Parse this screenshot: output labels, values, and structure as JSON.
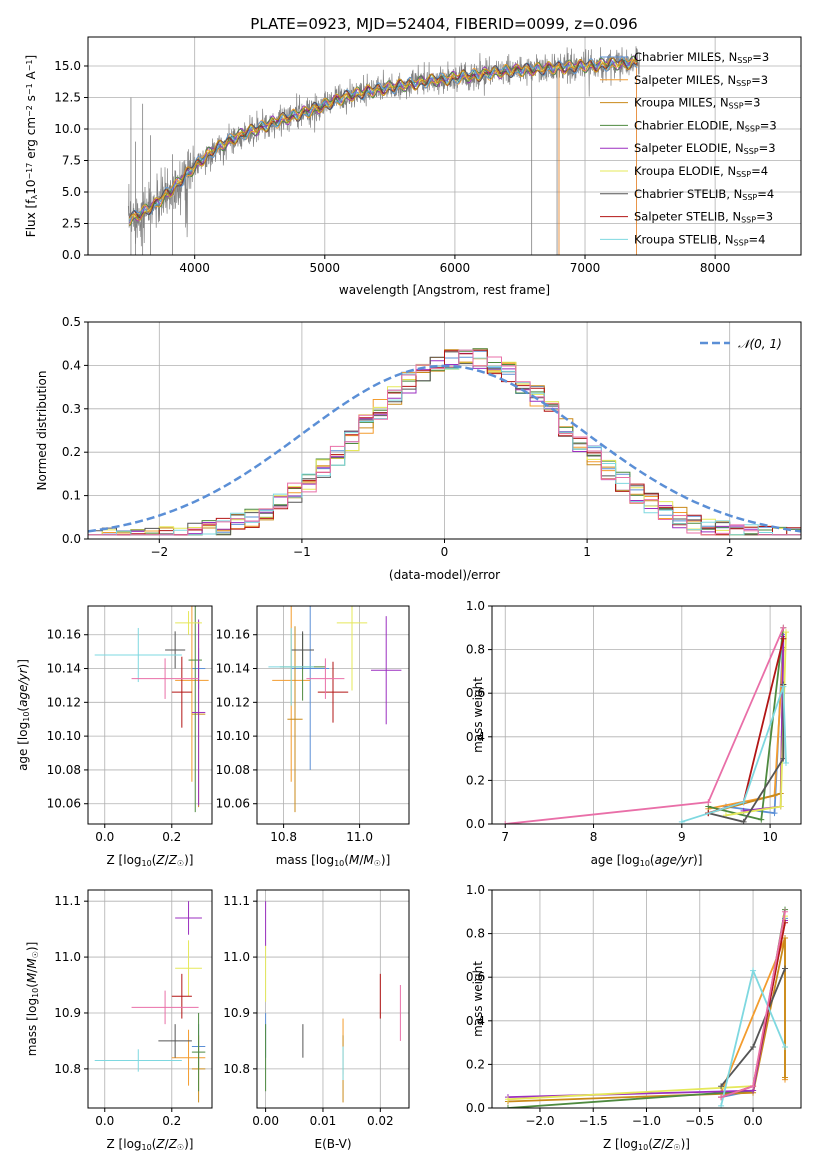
{
  "figure_title": "PLATE=0923, MJD=52404, FIBERID=0099, z=0.096",
  "colors": [
    "#5b8fd6",
    "#f39c2e",
    "#c98a1a",
    "#4e8a3f",
    "#9b2fc0",
    "#e5e85a",
    "#555555",
    "#b21515",
    "#7ed8e0",
    "#e96fa8"
  ],
  "chart_data": [
    {
      "type": "line",
      "title": "PLATE=0923, MJD=52404, FIBERID=0099, z=0.096",
      "xlabel": "wavelength [Angstrom, rest frame]",
      "ylabel": "Flux [f_λ 10^-17 erg cm^-2 s^-1 A^-1]",
      "xlim": [
        3180,
        8660
      ],
      "ylim": [
        0,
        17.3
      ],
      "xticks": [
        "4000",
        "5000",
        "6000",
        "7000",
        "8000"
      ],
      "yticks": [
        "0.0",
        "2.5",
        "5.0",
        "7.5",
        "10.0",
        "12.5",
        "15.0"
      ],
      "legend": "top-right",
      "series": [
        {
          "name": "Chabrier MILES, N_SSP=3"
        },
        {
          "name": "Salpeter MILES, N_SSP=3"
        },
        {
          "name": "Kroupa MILES, N_SSP=3"
        },
        {
          "name": "Chabrier ELODIE, N_SSP=3"
        },
        {
          "name": "Salpeter ELODIE, N_SSP=3"
        },
        {
          "name": "Kroupa ELODIE, N_SSP=4"
        },
        {
          "name": "Chabrier STELIB, N_SSP=4"
        },
        {
          "name": "Salpeter STELIB, N_SSP=3"
        },
        {
          "name": "Kroupa STELIB, N_SSP=4"
        }
      ],
      "continuum": {
        "x": [
          3500,
          3700,
          3900,
          4100,
          4300,
          4600,
          4900,
          5200,
          5500,
          5800,
          6100,
          6400,
          6700,
          7000,
          7400
        ],
        "y": [
          2.8,
          4.0,
          6.0,
          8.0,
          9.3,
          10.5,
          11.5,
          12.7,
          13.3,
          13.8,
          14.2,
          14.6,
          14.8,
          15.0,
          15.3
        ]
      },
      "flat_segment": [
        5000,
        7400
      ]
    },
    {
      "type": "line",
      "xlabel": "(data-model)/error",
      "ylabel": "Normed distribution",
      "xlim": [
        -2.5,
        2.5
      ],
      "ylim": [
        0,
        0.5
      ],
      "xticks": [
        "−2",
        "−1",
        "0",
        "1",
        "2"
      ],
      "yticks": [
        "0.0",
        "0.1",
        "0.2",
        "0.3",
        "0.4",
        "0.5"
      ],
      "legend": "top-right",
      "gaussian_label": "𝒩(0, 1)",
      "hist_bins": 50
    },
    {
      "type": "scatter",
      "xlabel": "Z [log10(Z/Z☉)]",
      "ylabel": "age  [log10(age/yr)]",
      "xlim": [
        -0.05,
        0.32
      ],
      "ylim": [
        10.048,
        10.177
      ],
      "xticks": [
        "0.0",
        "0.2"
      ],
      "yticks": [
        "10.06",
        "10.08",
        "10.10",
        "10.12",
        "10.14",
        "10.16"
      ],
      "points": [
        {
          "x": 0.28,
          "y": 10.14,
          "xerr": 0.02,
          "yerr": 0.012
        },
        {
          "x": 0.26,
          "y": 10.133,
          "xerr": 0.05,
          "yerr": 0.06
        },
        {
          "x": 0.28,
          "y": 10.113,
          "xerr": 0.02,
          "yerr": 0.055
        },
        {
          "x": 0.27,
          "y": 10.145,
          "xerr": 0.02,
          "yerr": 0.09
        },
        {
          "x": 0.28,
          "y": 10.114,
          "xerr": 0.02,
          "yerr": 0.055
        },
        {
          "x": 0.25,
          "y": 10.167,
          "xerr": 0.04,
          "yerr": 0.007
        },
        {
          "x": 0.21,
          "y": 10.151,
          "xerr": 0.03,
          "yerr": 0.011
        },
        {
          "x": 0.23,
          "y": 10.126,
          "xerr": 0.03,
          "yerr": 0.021
        },
        {
          "x": 0.1,
          "y": 10.148,
          "xerr": 0.13,
          "yerr": 0.016
        },
        {
          "x": 0.18,
          "y": 10.134,
          "xerr": 0.1,
          "yerr": 0.012
        }
      ]
    },
    {
      "type": "scatter",
      "xlabel": "mass [log10(M/M☉)]",
      "ylabel": "",
      "xlim": [
        10.73,
        11.13
      ],
      "ylim": [
        10.048,
        10.177
      ],
      "xticks": [
        "10.8",
        "11.0"
      ],
      "yticks": [
        "10.06",
        "10.08",
        "10.10",
        "10.12",
        "10.14",
        "10.16"
      ],
      "points": [
        {
          "x": 10.87,
          "y": 10.14,
          "xerr": 0.05,
          "yerr": 0.06
        },
        {
          "x": 10.82,
          "y": 10.133,
          "xerr": 0.05,
          "yerr": 0.06
        },
        {
          "x": 10.83,
          "y": 10.11,
          "xerr": 0.02,
          "yerr": 0.055
        },
        {
          "x": 10.85,
          "y": 10.141,
          "xerr": 0.06,
          "yerr": 0.02
        },
        {
          "x": 11.07,
          "y": 10.139,
          "xerr": 0.04,
          "yerr": 0.032
        },
        {
          "x": 10.98,
          "y": 10.167,
          "xerr": 0.04,
          "yerr": 0.04
        },
        {
          "x": 10.85,
          "y": 10.151,
          "xerr": 0.03,
          "yerr": 0.011
        },
        {
          "x": 10.93,
          "y": 10.126,
          "xerr": 0.04,
          "yerr": 0.018
        },
        {
          "x": 10.82,
          "y": 10.141,
          "xerr": 0.06,
          "yerr": 0.023
        },
        {
          "x": 10.91,
          "y": 10.134,
          "xerr": 0.05,
          "yerr": 0.012
        }
      ]
    },
    {
      "type": "line",
      "xlabel": "age  [log10(age/yr)]",
      "ylabel": "mass weight",
      "xlim": [
        6.85,
        10.35
      ],
      "ylim": [
        0,
        1.0
      ],
      "xticks": [
        "7",
        "8",
        "9",
        "10"
      ],
      "yticks": [
        "0.0",
        "0.2",
        "0.4",
        "0.6",
        "0.8",
        "1.0"
      ],
      "series": [
        {
          "x": [
            9.5,
            10.05,
            10.15
          ],
          "y": [
            0.08,
            0.05,
            0.87
          ]
        },
        {
          "x": [
            9.3,
            10.05,
            10.15
          ],
          "y": [
            0.07,
            0.13,
            0.8
          ]
        },
        {
          "x": [
            9.3,
            10.12,
            10.15
          ],
          "y": [
            0.05,
            0.14,
            0.81
          ]
        },
        {
          "x": [
            9.3,
            9.9,
            10.15
          ],
          "y": [
            0.08,
            0.02,
            0.9
          ]
        },
        {
          "x": [
            9.7,
            10.12,
            10.15
          ],
          "y": [
            0.06,
            0.08,
            0.86
          ]
        },
        {
          "x": [
            9.5,
            10.12,
            10.18
          ],
          "y": [
            0.04,
            0.08,
            0.88
          ]
        },
        {
          "x": [
            9.3,
            9.7,
            10.15,
            10.15
          ],
          "y": [
            0.05,
            0.01,
            0.3,
            0.64
          ]
        },
        {
          "x": [
            9.3,
            9.7,
            10.15
          ],
          "y": [
            0.05,
            0.1,
            0.85
          ]
        },
        {
          "x": [
            9.0,
            9.7,
            10.15,
            10.18
          ],
          "y": [
            0.01,
            0.1,
            0.63,
            0.28
          ]
        },
        {
          "x": [
            7.0,
            9.3,
            10.15
          ],
          "y": [
            0.0,
            0.1,
            0.9
          ]
        }
      ]
    },
    {
      "type": "scatter",
      "xlabel": "Z [log10(Z/Z☉)]",
      "ylabel": "mass [log10(M/M☉)]",
      "xlim": [
        -0.05,
        0.32
      ],
      "ylim": [
        10.73,
        11.12
      ],
      "xticks": [
        "0.0",
        "0.2"
      ],
      "yticks": [
        "10.8",
        "10.9",
        "11.0",
        "11.1"
      ],
      "points": [
        {
          "x": 0.28,
          "y": 10.84,
          "xerr": 0.02,
          "yerr": 0.04
        },
        {
          "x": 0.25,
          "y": 10.82,
          "xerr": 0.05,
          "yerr": 0.05
        },
        {
          "x": 0.28,
          "y": 10.8,
          "xerr": 0.02,
          "yerr": 0.06
        },
        {
          "x": 0.28,
          "y": 10.83,
          "xerr": 0.02,
          "yerr": 0.07
        },
        {
          "x": 0.25,
          "y": 11.07,
          "xerr": 0.04,
          "yerr": 0.03
        },
        {
          "x": 0.25,
          "y": 10.98,
          "xerr": 0.04,
          "yerr": 0.05
        },
        {
          "x": 0.21,
          "y": 10.85,
          "xerr": 0.05,
          "yerr": 0.03
        },
        {
          "x": 0.23,
          "y": 10.93,
          "xerr": 0.03,
          "yerr": 0.04
        },
        {
          "x": 0.1,
          "y": 10.815,
          "xerr": 0.13,
          "yerr": 0.02
        },
        {
          "x": 0.18,
          "y": 10.91,
          "xerr": 0.1,
          "yerr": 0.03
        }
      ]
    },
    {
      "type": "scatter",
      "xlabel": "E(B-V)",
      "ylabel": "",
      "xlim": [
        -0.0015,
        0.025
      ],
      "ylim": [
        10.73,
        11.12
      ],
      "xticks": [
        "0.00",
        "0.01",
        "0.02"
      ],
      "yticks": [
        "10.8",
        "10.9",
        "11.0",
        "11.1"
      ],
      "points": [
        {
          "x": 0.0,
          "y": 10.86,
          "xerr": 0,
          "yerr": 0.04
        },
        {
          "x": 0.0135,
          "y": 10.84,
          "xerr": 0,
          "yerr": 0.05
        },
        {
          "x": 0.0135,
          "y": 10.8,
          "xerr": 0,
          "yerr": 0.06
        },
        {
          "x": 0.0,
          "y": 10.82,
          "xerr": 0,
          "yerr": 0.06
        },
        {
          "x": 0.0,
          "y": 11.06,
          "xerr": 0,
          "yerr": 0.04
        },
        {
          "x": 0.0,
          "y": 10.97,
          "xerr": 0,
          "yerr": 0.05
        },
        {
          "x": 0.0065,
          "y": 10.85,
          "xerr": 0,
          "yerr": 0.03
        },
        {
          "x": 0.02,
          "y": 10.93,
          "xerr": 0,
          "yerr": 0.04
        },
        {
          "x": 0.0135,
          "y": 10.81,
          "xerr": 0,
          "yerr": 0.03
        },
        {
          "x": 0.0235,
          "y": 10.9,
          "xerr": 0,
          "yerr": 0.05
        }
      ]
    },
    {
      "type": "line",
      "xlabel": "Z [log10(Z/Z☉)]",
      "ylabel": "mass weight",
      "xlim": [
        -2.45,
        0.45
      ],
      "ylim": [
        0,
        1.0
      ],
      "xticks": [
        "−2.0",
        "−1.5",
        "−1.0",
        "−0.5",
        "0.0"
      ],
      "yticks": [
        "0.0",
        "0.2",
        "0.4",
        "0.6",
        "0.8",
        "1.0"
      ],
      "series": [
        {
          "x": [
            -0.3,
            0.0,
            0.3
          ],
          "y": [
            0.05,
            0.08,
            0.87
          ]
        },
        {
          "x": [
            -0.3,
            0.3,
            0.3
          ],
          "y": [
            0.07,
            0.78,
            0.13
          ]
        },
        {
          "x": [
            -2.3,
            0.0,
            0.3,
            0.3
          ],
          "y": [
            0.03,
            0.07,
            0.78,
            0.14
          ]
        },
        {
          "x": [
            -2.3,
            0.0,
            0.3
          ],
          "y": [
            0.0,
            0.08,
            0.91
          ]
        },
        {
          "x": [
            -2.3,
            0.0,
            0.3
          ],
          "y": [
            0.05,
            0.08,
            0.86
          ]
        },
        {
          "x": [
            -2.3,
            0.0,
            0.3
          ],
          "y": [
            0.04,
            0.1,
            0.88
          ]
        },
        {
          "x": [
            -0.3,
            0.0,
            0.3
          ],
          "y": [
            0.1,
            0.28,
            0.64
          ]
        },
        {
          "x": [
            -0.3,
            0.0,
            0.3
          ],
          "y": [
            0.05,
            0.1,
            0.85
          ]
        },
        {
          "x": [
            -0.3,
            0.0,
            0.3
          ],
          "y": [
            0.01,
            0.63,
            0.28
          ]
        },
        {
          "x": [
            -0.3,
            0.0,
            0.3
          ],
          "y": [
            0.05,
            0.1,
            0.9
          ]
        }
      ]
    }
  ]
}
